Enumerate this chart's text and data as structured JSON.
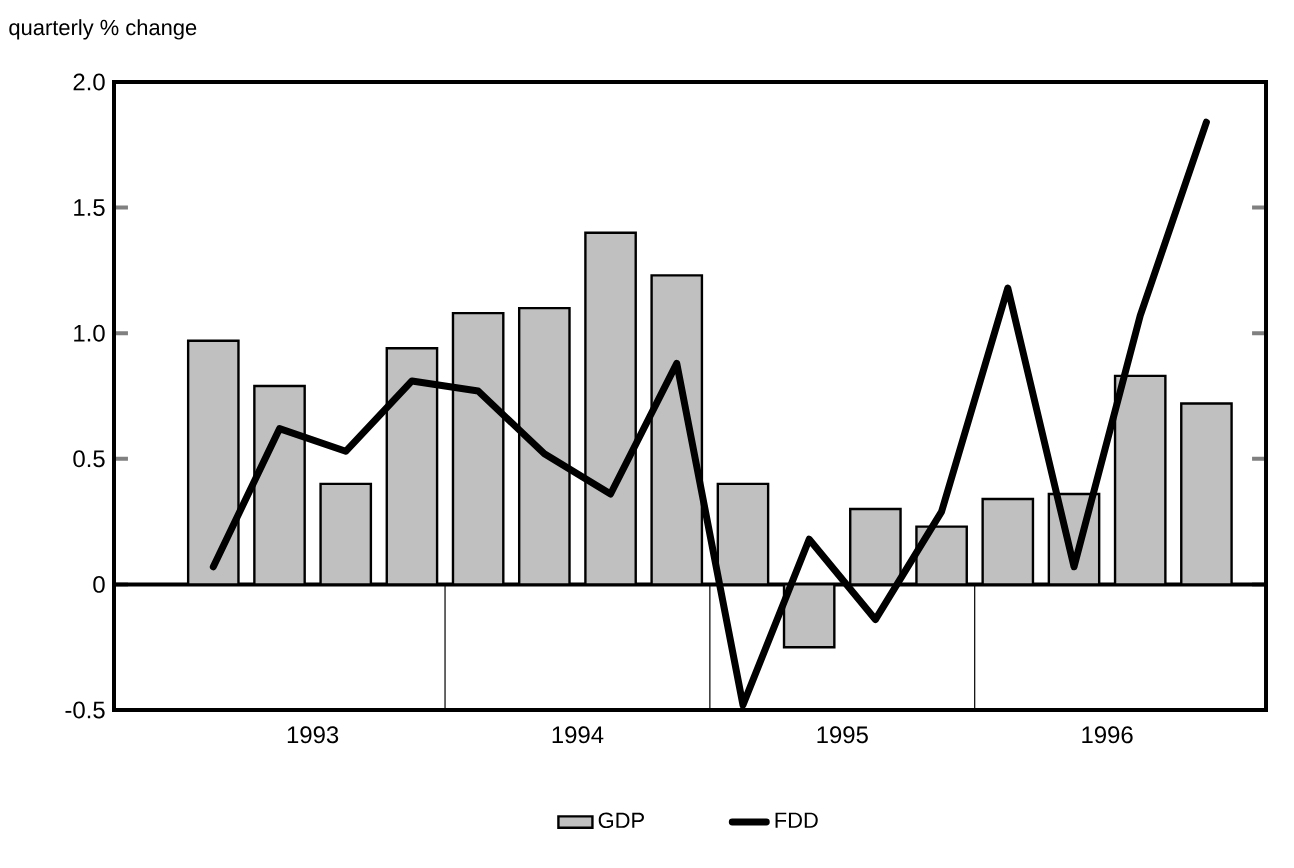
{
  "chart_data": {
    "type": "bar",
    "ylabel": "quarterly % change",
    "x": [
      1993.125,
      1993.375,
      1993.625,
      1993.875,
      1994.125,
      1994.375,
      1994.625,
      1994.875,
      1995.125,
      1995.375,
      1995.625,
      1995.875,
      1996.125,
      1996.375,
      1996.625,
      1996.875
    ],
    "xlim": [
      1992.75,
      1997.1
    ],
    "xticks": [
      {
        "value": 1993.5,
        "label": "1993"
      },
      {
        "value": 1994.5,
        "label": "1994"
      },
      {
        "value": 1995.5,
        "label": "1995"
      },
      {
        "value": 1996.5,
        "label": "1996"
      }
    ],
    "ylim": [
      -0.5,
      2.0
    ],
    "yticks": [
      {
        "value": -0.5,
        "label": "-0.5"
      },
      0,
      {
        "value": 0.5,
        "label": "0.5"
      },
      {
        "value": 1.0,
        "label": "1.0"
      },
      {
        "value": 1.5,
        "label": "1.5"
      },
      {
        "value": 2.0,
        "label": "2.0"
      }
    ],
    "series": [
      {
        "name": "GDP",
        "color": "#c0c0c0",
        "values": [
          0.97,
          0.79,
          0.4,
          0.94,
          1.08,
          1.1,
          1.4,
          1.23,
          0.4,
          -0.25,
          0.3,
          0.23,
          0.34,
          0.36,
          0.83,
          0.72
        ]
      },
      {
        "name": "FDD",
        "type": "line",
        "color": "#000000",
        "values": [
          0.07,
          0.62,
          0.53,
          0.81,
          0.77,
          0.52,
          0.36,
          0.88,
          -0.48,
          0.18,
          -0.14,
          0.29,
          1.18,
          0.07,
          1.07,
          1.84
        ]
      }
    ],
    "ref_lines": [
      {
        "axis": "y",
        "value": 0
      },
      {
        "axis": "x",
        "value": 1994,
        "color": "#000000"
      },
      {
        "axis": "x",
        "value": 1995,
        "color": "#000000"
      },
      {
        "axis": "x",
        "value": 1996,
        "color": "#000000"
      }
    ],
    "legend": "bottom",
    "grid": false,
    "marker": "none",
    "line_style": "solid"
  }
}
